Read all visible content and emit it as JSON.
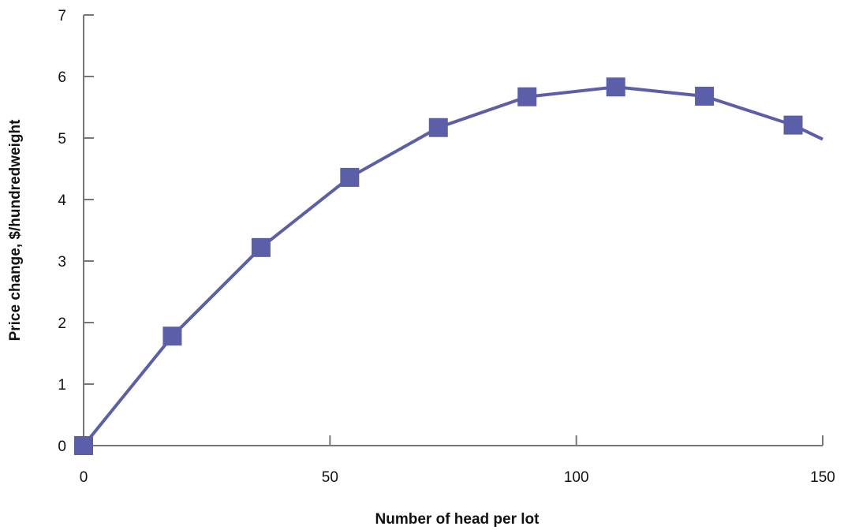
{
  "chart_data": {
    "type": "line",
    "title": "",
    "xlabel": "Number of head per lot",
    "ylabel": "Price change, $/hundredweight",
    "xlim": [
      0,
      150
    ],
    "ylim": [
      0,
      7
    ],
    "xticks": [
      0,
      50,
      100,
      150
    ],
    "yticks": [
      0,
      1,
      2,
      3,
      4,
      5,
      6,
      7
    ],
    "grid": false,
    "series": [
      {
        "marker": "square",
        "x": [
          0,
          18,
          36,
          54,
          72,
          90,
          108,
          126,
          144
        ],
        "y": [
          0,
          1.78,
          3.22,
          4.36,
          5.17,
          5.67,
          5.83,
          5.68,
          5.21
        ],
        "line_end": {
          "x": 150,
          "y": 4.98
        }
      }
    ],
    "colors": {
      "series": "#5b5ea8",
      "axis": "#777777"
    }
  }
}
